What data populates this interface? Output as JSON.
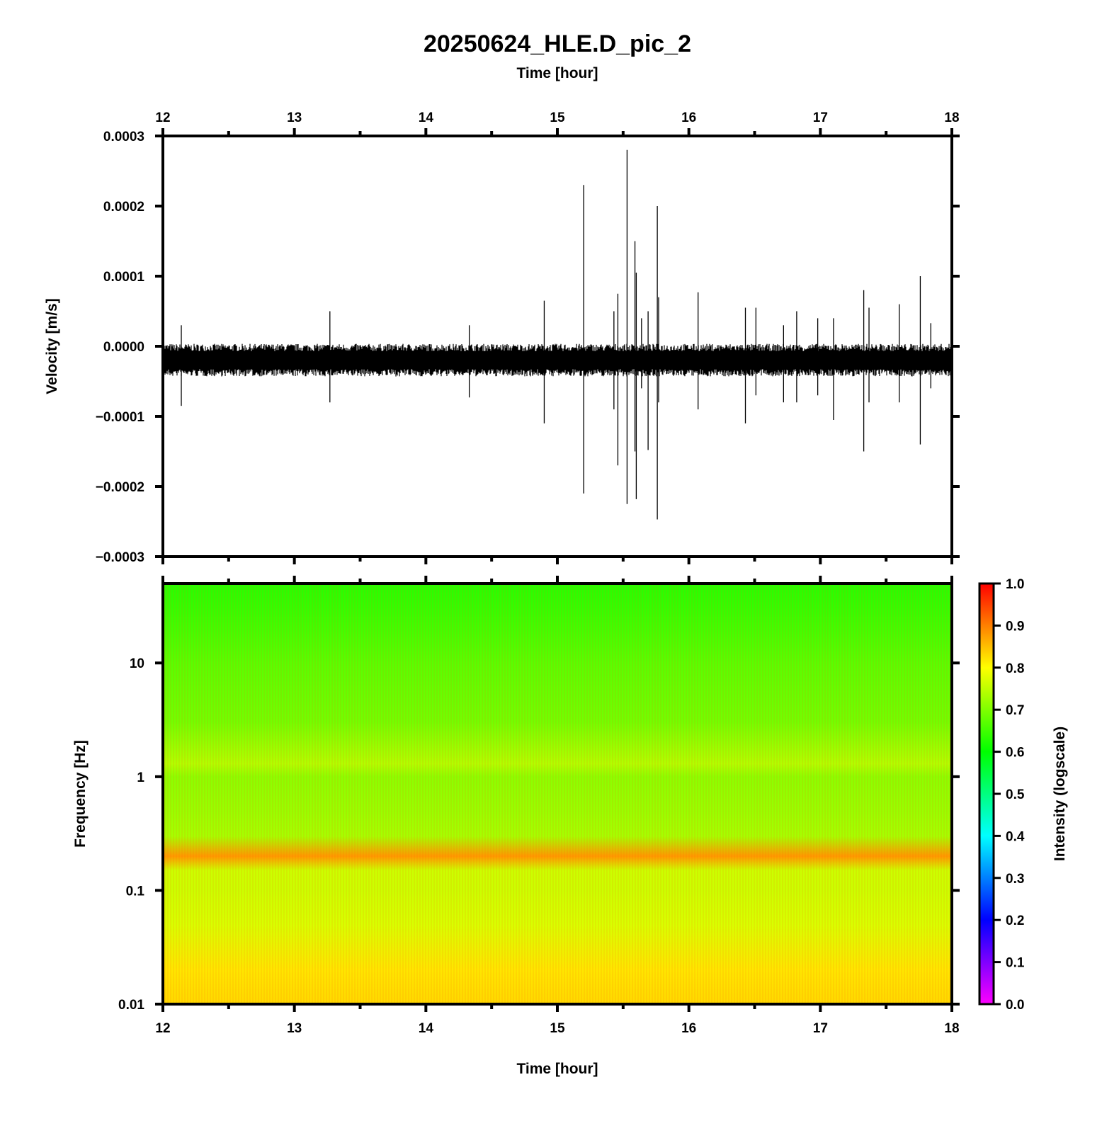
{
  "title": "20250624_HLE.D_pic_2",
  "colors": {
    "axis": "#000000",
    "trace": "#000000",
    "background": "#ffffff"
  },
  "chart_data": [
    {
      "type": "line",
      "panel": "waveform",
      "xlabel": "Time [hour]",
      "ylabel": "Velocity [m/s]",
      "xlim": [
        12,
        18
      ],
      "ylim": [
        -0.0003,
        0.0003
      ],
      "x_ticks": [
        "12",
        "13",
        "14",
        "15",
        "16",
        "17",
        "18"
      ],
      "y_ticks": [
        "0.0003",
        "0.0002",
        "0.0001",
        "0.0000",
        "−0.0001",
        "−0.0002",
        "−0.0003"
      ],
      "baseline": {
        "center": -2e-05,
        "noise_max": 3.5e-06,
        "noise_min": -4.3e-05
      },
      "spikes": [
        {
          "x": 12.14,
          "max": 3e-05,
          "min": -8.5e-05
        },
        {
          "x": 13.27,
          "max": 5e-05,
          "min": -8e-05
        },
        {
          "x": 14.33,
          "max": 3e-05,
          "min": -7.3e-05
        },
        {
          "x": 14.9,
          "max": 6.5e-05,
          "min": -0.00011
        },
        {
          "x": 15.2,
          "max": 0.00023,
          "min": -0.00021
        },
        {
          "x": 15.43,
          "max": 5e-05,
          "min": -9e-05
        },
        {
          "x": 15.46,
          "max": 7.5e-05,
          "min": -0.00017
        },
        {
          "x": 15.53,
          "max": 0.00028,
          "min": -0.000225
        },
        {
          "x": 15.59,
          "max": 0.00015,
          "min": -0.00015
        },
        {
          "x": 15.6,
          "max": 0.000105,
          "min": -0.000218
        },
        {
          "x": 15.64,
          "max": 4e-05,
          "min": -6e-05
        },
        {
          "x": 15.69,
          "max": 5e-05,
          "min": -0.000148
        },
        {
          "x": 15.76,
          "max": 0.0002,
          "min": -0.000247
        },
        {
          "x": 15.77,
          "max": 7e-05,
          "min": -8e-05
        },
        {
          "x": 16.07,
          "max": 7.7e-05,
          "min": -9e-05
        },
        {
          "x": 16.43,
          "max": 5.5e-05,
          "min": -0.00011
        },
        {
          "x": 16.51,
          "max": 5.5e-05,
          "min": -7e-05
        },
        {
          "x": 16.72,
          "max": 3e-05,
          "min": -8e-05
        },
        {
          "x": 16.82,
          "max": 5e-05,
          "min": -8e-05
        },
        {
          "x": 16.98,
          "max": 4e-05,
          "min": -7e-05
        },
        {
          "x": 17.1,
          "max": 4e-05,
          "min": -0.000105
        },
        {
          "x": 17.33,
          "max": 8e-05,
          "min": -0.00015
        },
        {
          "x": 17.37,
          "max": 5.5e-05,
          "min": -8e-05
        },
        {
          "x": 17.6,
          "max": 6e-05,
          "min": -8e-05
        },
        {
          "x": 17.76,
          "max": 0.0001,
          "min": -0.00014
        },
        {
          "x": 17.84,
          "max": 3.3e-05,
          "min": -6e-05
        }
      ]
    },
    {
      "type": "heatmap",
      "panel": "spectrogram",
      "xlabel": "Time [hour]",
      "ylabel": "Frequency [Hz]",
      "xlim": [
        12,
        18
      ],
      "ylim": [
        0.01,
        50
      ],
      "yscale": "log",
      "x_ticks": [
        "12",
        "13",
        "14",
        "15",
        "16",
        "17",
        "18"
      ],
      "y_ticks": [
        "10",
        "1",
        "0.1",
        "0.01"
      ],
      "intensity_profile": [
        {
          "freq": 50,
          "intensity": 0.63
        },
        {
          "freq": 30,
          "intensity": 0.64
        },
        {
          "freq": 10,
          "intensity": 0.67
        },
        {
          "freq": 3,
          "intensity": 0.69
        },
        {
          "freq": 1.3,
          "intensity": 0.74
        },
        {
          "freq": 1.0,
          "intensity": 0.71
        },
        {
          "freq": 0.5,
          "intensity": 0.72
        },
        {
          "freq": 0.3,
          "intensity": 0.73
        },
        {
          "freq": 0.2,
          "intensity": 0.88
        },
        {
          "freq": 0.15,
          "intensity": 0.76
        },
        {
          "freq": 0.1,
          "intensity": 0.76
        },
        {
          "freq": 0.05,
          "intensity": 0.77
        },
        {
          "freq": 0.02,
          "intensity": 0.82
        },
        {
          "freq": 0.01,
          "intensity": 0.83
        }
      ],
      "colorbar": {
        "label": "Intensity (logscale)",
        "range": [
          0,
          1
        ],
        "ticks": [
          "1.0",
          "0.9",
          "0.8",
          "0.7",
          "0.6",
          "0.5",
          "0.4",
          "0.3",
          "0.2",
          "0.1",
          "0.0"
        ],
        "stops": [
          {
            "v": 0.0,
            "color": "#ff00ff"
          },
          {
            "v": 0.2,
            "color": "#0000ff"
          },
          {
            "v": 0.4,
            "color": "#00ffff"
          },
          {
            "v": 0.6,
            "color": "#00ff00"
          },
          {
            "v": 0.8,
            "color": "#ffff00"
          },
          {
            "v": 1.0,
            "color": "#ff0000"
          }
        ]
      }
    }
  ]
}
